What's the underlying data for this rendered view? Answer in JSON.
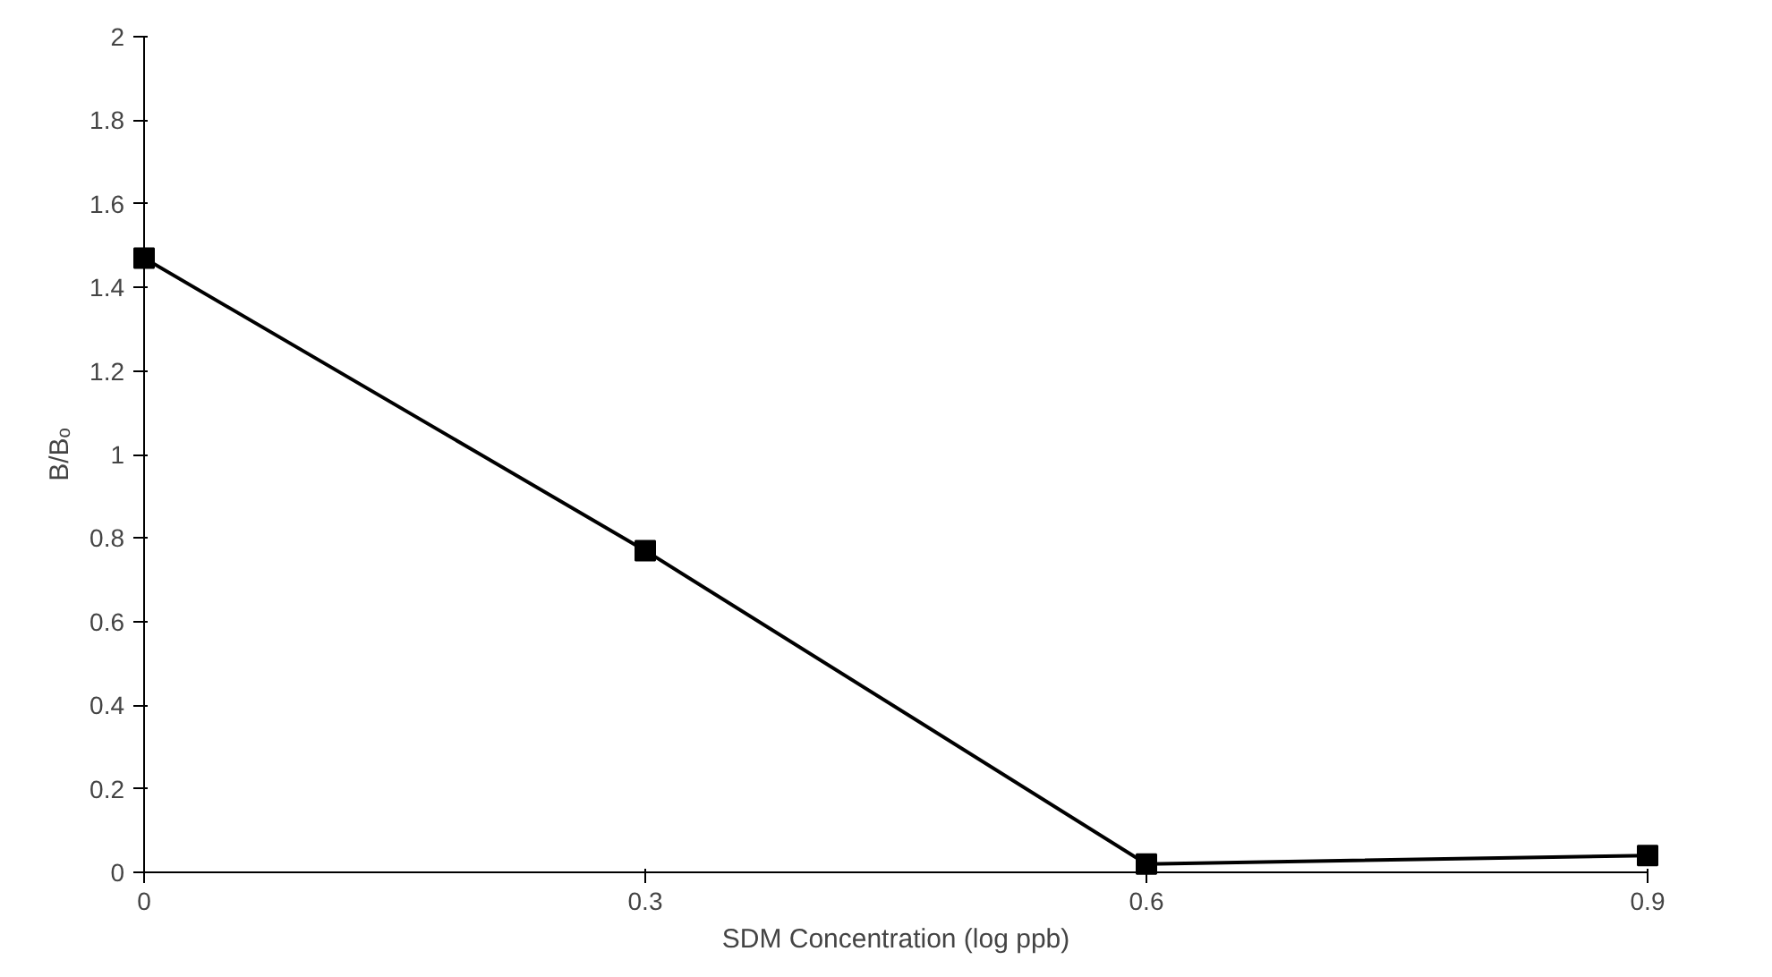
{
  "chart_data": {
    "type": "line",
    "xlabel": "SDM Concentration (log ppb)",
    "ylabel": "B/Bₒ",
    "x": [
      0,
      0.3,
      0.6,
      0.9
    ],
    "series": [
      {
        "color": "#000000",
        "values": [
          1.47,
          0.77,
          0.02,
          0.04
        ]
      }
    ],
    "xlim": [
      0,
      0.9
    ],
    "xticks": [
      0,
      0.3,
      0.6,
      0.9
    ],
    "ylim": [
      0,
      2
    ],
    "yticks": [
      0,
      0.2,
      0.4,
      0.6,
      0.8,
      1,
      1.2,
      1.4,
      1.6,
      1.8,
      2
    ],
    "grid": false,
    "marker": "square",
    "line_style": "solid"
  }
}
